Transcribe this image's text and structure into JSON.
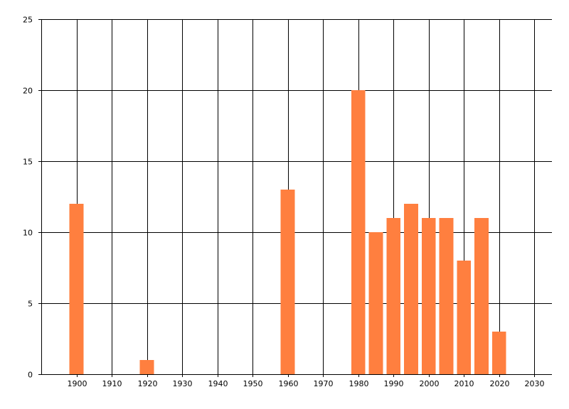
{
  "chart_data": {
    "type": "bar",
    "title": "",
    "xlabel": "",
    "ylabel": "",
    "x": [
      1900,
      1920,
      1960,
      1980,
      1985,
      1990,
      1995,
      2000,
      2005,
      2010,
      2015,
      2020
    ],
    "values": [
      12,
      1,
      13,
      20,
      10,
      11,
      12,
      11,
      11,
      8,
      11,
      3
    ],
    "bar_width_years": 4,
    "xlim": [
      1890,
      2035
    ],
    "ylim": [
      0,
      25
    ],
    "x_ticks": [
      "1900",
      "1910",
      "1920",
      "1930",
      "1940",
      "1950",
      "1960",
      "1970",
      "1980",
      "1990",
      "2000",
      "2010",
      "2020",
      "2030"
    ],
    "y_ticks": [
      "0",
      "5",
      "10",
      "15",
      "20",
      "25"
    ],
    "grid": true,
    "legend": "none",
    "bar_color": "#ff7f3f",
    "grid_color": "#000000"
  }
}
